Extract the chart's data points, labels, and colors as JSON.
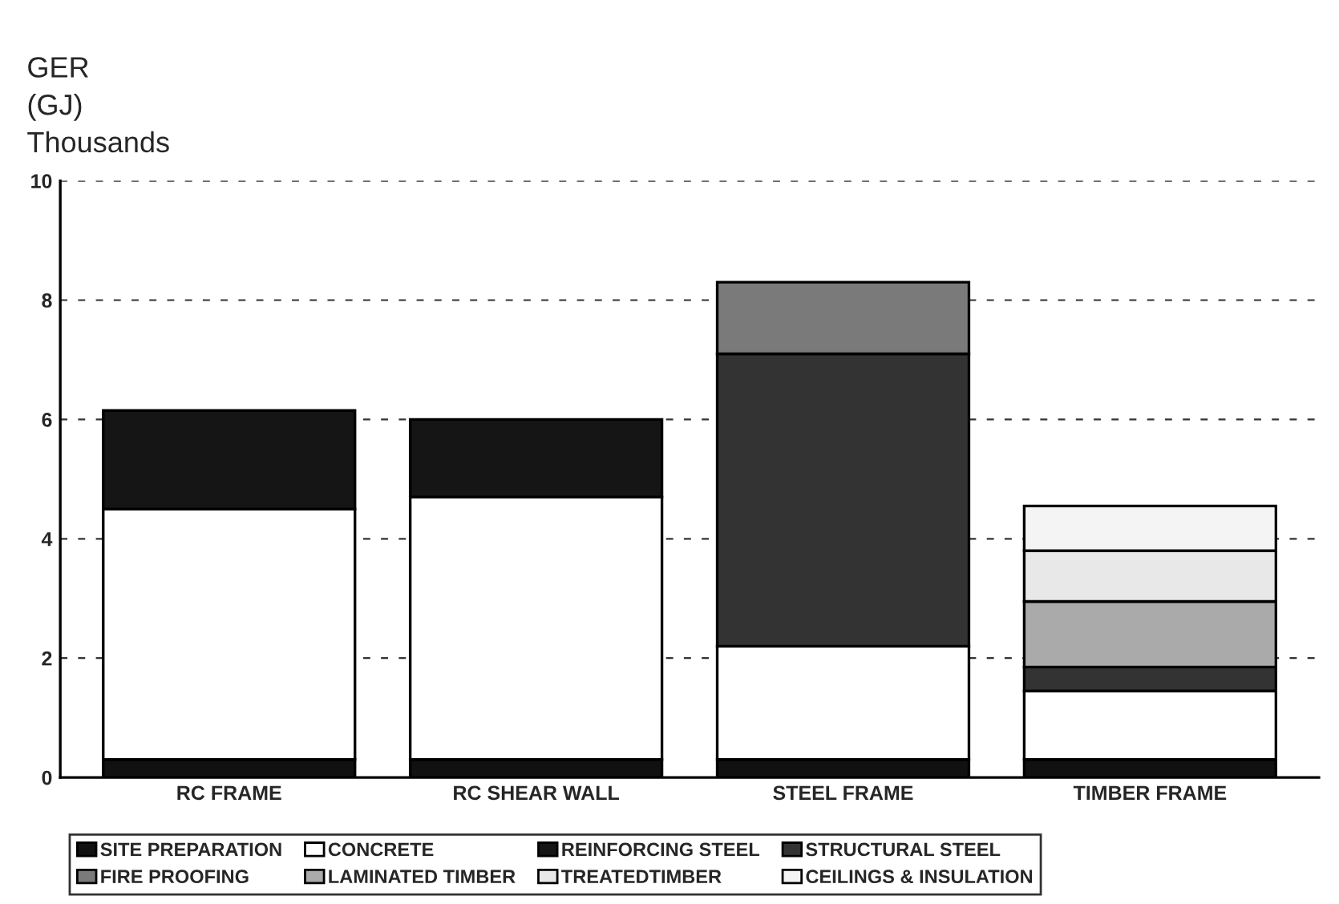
{
  "chart_data": {
    "type": "bar",
    "stacked": true,
    "ylabel": "GER\n(GJ)\nThousands",
    "categories": [
      "RC FRAME",
      "RC SHEAR WALL",
      "STEEL FRAME",
      "TIMBER FRAME"
    ],
    "series": [
      {
        "name": "SITE PREPARATION",
        "color": "#111111",
        "values": [
          0.3,
          0.3,
          0.3,
          0.3
        ]
      },
      {
        "name": "CONCRETE",
        "color": "#ffffff",
        "values": [
          4.2,
          4.4,
          1.9,
          1.15
        ]
      },
      {
        "name": "REINFORCING STEEL",
        "color": "#151515",
        "values": [
          1.65,
          1.3,
          null,
          null
        ]
      },
      {
        "name": "STRUCTURAL STEEL",
        "color": "#333333",
        "values": [
          null,
          null,
          4.9,
          0.4
        ]
      },
      {
        "name": "FIRE PROOFING",
        "color": "#7a7a7a",
        "values": [
          null,
          null,
          1.2,
          null
        ]
      },
      {
        "name": "LAMINATED TIMBER",
        "color": "#aaaaaa",
        "values": [
          null,
          null,
          null,
          1.1
        ]
      },
      {
        "name": "TREATEDTIMBER",
        "color": "#e8e8e8",
        "values": [
          null,
          null,
          null,
          0.85
        ]
      },
      {
        "name": "CEILINGS & INSULATION",
        "color": "#f4f4f4",
        "values": [
          null,
          null,
          null,
          0.75
        ]
      }
    ],
    "ylim": [
      0,
      10
    ],
    "yticks": [
      0,
      2,
      4,
      6,
      8,
      10
    ],
    "grid": "y",
    "legend": "bottom"
  }
}
